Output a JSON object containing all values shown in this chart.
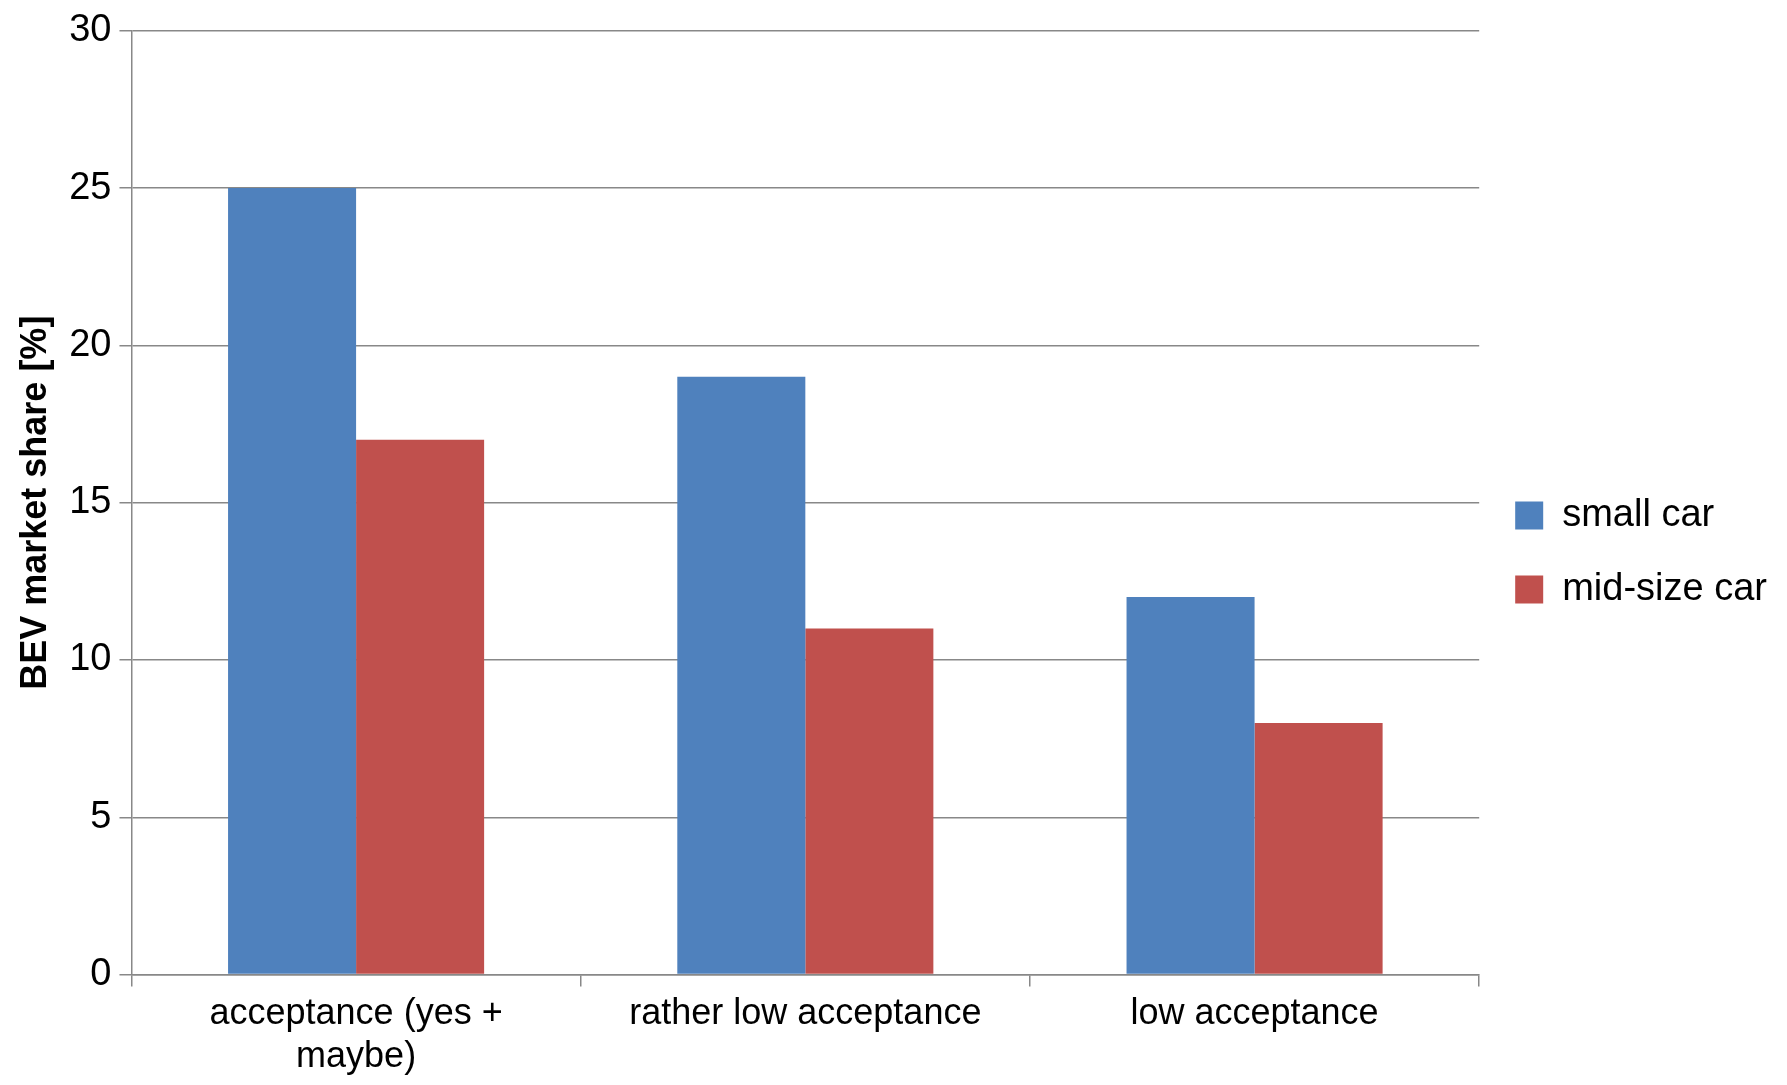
{
  "chart_data": {
    "type": "bar",
    "ylabel": "BEV market share [%]",
    "categories": [
      "acceptance (yes + maybe)",
      "rather low acceptance",
      "low acceptance"
    ],
    "series": [
      {
        "name": "small car",
        "color": "#4f81bd",
        "values": [
          25,
          19,
          12
        ]
      },
      {
        "name": "mid-size car",
        "color": "#c0504d",
        "values": [
          17,
          11,
          8
        ]
      }
    ],
    "ylim": [
      0,
      30
    ],
    "yticks": [
      0,
      5,
      10,
      15,
      20,
      25,
      30
    ],
    "grid": "y",
    "legend": "right"
  }
}
